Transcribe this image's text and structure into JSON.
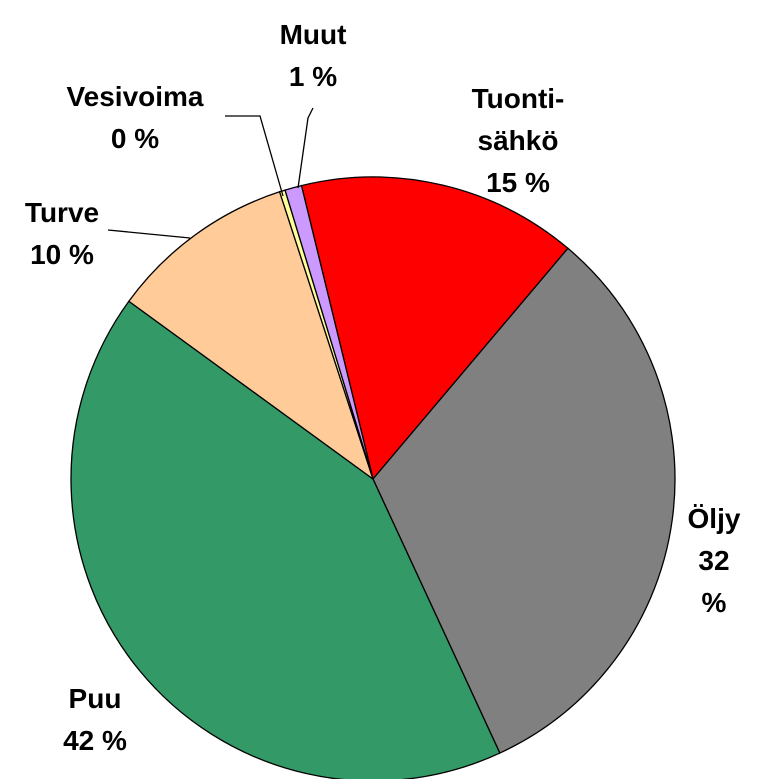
{
  "chart_data": {
    "type": "pie",
    "categories": [
      "Tuonti-\nsähkö",
      "Öljy",
      "Puu",
      "Turve",
      "Vesivoima",
      "Muut"
    ],
    "values": [
      15,
      32,
      42,
      10,
      0.3,
      0.9
    ],
    "value_labels": [
      "15 %",
      "32 %",
      "42 %",
      "10 %",
      "0 %",
      "1 %"
    ],
    "colors": [
      "#ff0000",
      "#808080",
      "#339966",
      "#ffcc99",
      "#ffff99",
      "#cc99ff"
    ]
  }
}
